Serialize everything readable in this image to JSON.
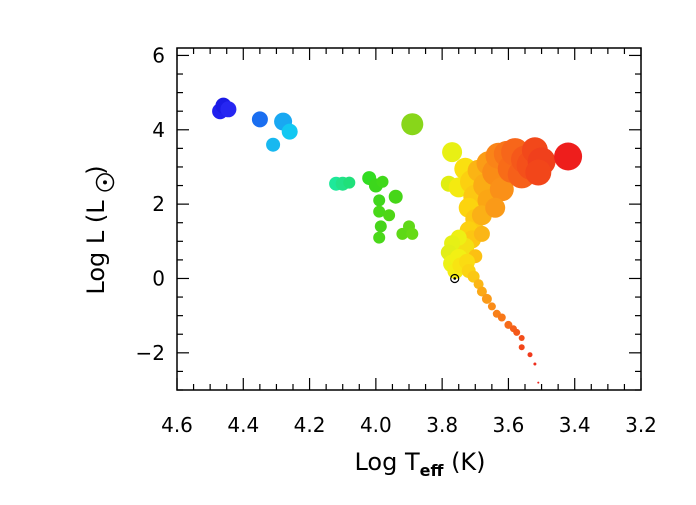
{
  "chart_data": {
    "type": "scatter",
    "title": "",
    "xlabel": {
      "main": "Log T",
      "sub": "eff",
      "tail": " (K)"
    },
    "ylabel": {
      "main": "Log L (L",
      "tail": ")"
    },
    "xlim": [
      4.6,
      3.2
    ],
    "ylim": [
      -3,
      6.2
    ],
    "x_ticks": [
      "4.6",
      "4.4",
      "4.2",
      "4.0",
      "3.8",
      "3.6",
      "3.4",
      "3.2"
    ],
    "x_tick_values": [
      4.6,
      4.4,
      4.2,
      4.0,
      3.8,
      3.6,
      3.4,
      3.2
    ],
    "y_ticks": [
      "6",
      "4",
      "2",
      "0",
      "−2"
    ],
    "y_tick_values": [
      6,
      4,
      2,
      0,
      -2
    ],
    "x_minor_step": 0.05,
    "y_minor_step": 0.5,
    "grid": false,
    "legend": "none",
    "sun_marker": {
      "x": 3.762,
      "y": 0.0,
      "symbol": "sun-icon"
    },
    "points": [
      {
        "x": 4.47,
        "y": 4.5,
        "size": 8,
        "color": "#2020ee"
      },
      {
        "x": 4.46,
        "y": 4.65,
        "size": 8,
        "color": "#1a1ae6"
      },
      {
        "x": 4.445,
        "y": 4.55,
        "size": 8,
        "color": "#2626f2"
      },
      {
        "x": 4.35,
        "y": 4.28,
        "size": 8,
        "color": "#1a6ef0"
      },
      {
        "x": 4.28,
        "y": 4.22,
        "size": 9,
        "color": "#19a8f2"
      },
      {
        "x": 4.26,
        "y": 3.95,
        "size": 8,
        "color": "#12c8f2"
      },
      {
        "x": 4.31,
        "y": 3.6,
        "size": 7,
        "color": "#18b8f0"
      },
      {
        "x": 4.12,
        "y": 2.55,
        "size": 7,
        "color": "#1ee89a"
      },
      {
        "x": 4.1,
        "y": 2.55,
        "size": 7,
        "color": "#22e288"
      },
      {
        "x": 4.08,
        "y": 2.58,
        "size": 6,
        "color": "#20e07a"
      },
      {
        "x": 4.02,
        "y": 2.7,
        "size": 7,
        "color": "#32dc22"
      },
      {
        "x": 4.0,
        "y": 2.5,
        "size": 7,
        "color": "#3cd61c"
      },
      {
        "x": 3.98,
        "y": 2.6,
        "size": 6,
        "color": "#40d81a"
      },
      {
        "x": 3.94,
        "y": 2.2,
        "size": 7,
        "color": "#46d618"
      },
      {
        "x": 3.99,
        "y": 2.1,
        "size": 6,
        "color": "#40d61c"
      },
      {
        "x": 3.99,
        "y": 1.8,
        "size": 6,
        "color": "#48d818"
      },
      {
        "x": 3.96,
        "y": 1.7,
        "size": 6,
        "color": "#4ed616"
      },
      {
        "x": 3.985,
        "y": 1.4,
        "size": 6,
        "color": "#46d41a"
      },
      {
        "x": 3.99,
        "y": 1.1,
        "size": 6,
        "color": "#4ad81a"
      },
      {
        "x": 3.92,
        "y": 1.2,
        "size": 6,
        "color": "#5ed816"
      },
      {
        "x": 3.9,
        "y": 1.4,
        "size": 6,
        "color": "#60d818"
      },
      {
        "x": 3.89,
        "y": 1.2,
        "size": 6,
        "color": "#66da16"
      },
      {
        "x": 3.89,
        "y": 4.15,
        "size": 11,
        "color": "#88d61a"
      },
      {
        "x": 3.77,
        "y": 3.4,
        "size": 10,
        "color": "#e8f014"
      },
      {
        "x": 3.78,
        "y": 2.55,
        "size": 8,
        "color": "#e0ee10"
      },
      {
        "x": 3.75,
        "y": 2.45,
        "size": 10,
        "color": "#f4ea10"
      },
      {
        "x": 3.73,
        "y": 2.95,
        "size": 11,
        "color": "#fae010"
      },
      {
        "x": 3.71,
        "y": 2.6,
        "size": 12,
        "color": "#fcd010"
      },
      {
        "x": 3.7,
        "y": 2.2,
        "size": 12,
        "color": "#fcc812"
      },
      {
        "x": 3.72,
        "y": 1.9,
        "size": 10,
        "color": "#fcd40e"
      },
      {
        "x": 3.7,
        "y": 1.6,
        "size": 10,
        "color": "#fcc810"
      },
      {
        "x": 3.72,
        "y": 1.3,
        "size": 9,
        "color": "#fcd010"
      },
      {
        "x": 3.71,
        "y": 1.05,
        "size": 9,
        "color": "#fcc612"
      },
      {
        "x": 3.73,
        "y": 0.85,
        "size": 9,
        "color": "#f4e014"
      },
      {
        "x": 3.69,
        "y": 2.9,
        "size": 11,
        "color": "#fbb414"
      },
      {
        "x": 3.67,
        "y": 2.5,
        "size": 12,
        "color": "#fbac14"
      },
      {
        "x": 3.66,
        "y": 2.1,
        "size": 11,
        "color": "#fba614"
      },
      {
        "x": 3.68,
        "y": 1.7,
        "size": 10,
        "color": "#fbb016"
      },
      {
        "x": 3.68,
        "y": 1.2,
        "size": 8,
        "color": "#fbb616"
      },
      {
        "x": 3.7,
        "y": 0.6,
        "size": 7,
        "color": "#fcc012"
      },
      {
        "x": 3.66,
        "y": 3.1,
        "size": 12,
        "color": "#fb9c16"
      },
      {
        "x": 3.64,
        "y": 2.85,
        "size": 13,
        "color": "#fa8c16"
      },
      {
        "x": 3.63,
        "y": 3.3,
        "size": 13,
        "color": "#fa8418"
      },
      {
        "x": 3.62,
        "y": 2.4,
        "size": 12,
        "color": "#fa9018"
      },
      {
        "x": 3.64,
        "y": 1.9,
        "size": 10,
        "color": "#fa9a18"
      },
      {
        "x": 3.605,
        "y": 3.35,
        "size": 13,
        "color": "#f87418"
      },
      {
        "x": 3.59,
        "y": 2.95,
        "size": 14,
        "color": "#f86c18"
      },
      {
        "x": 3.58,
        "y": 3.4,
        "size": 14,
        "color": "#f7661a"
      },
      {
        "x": 3.56,
        "y": 2.8,
        "size": 14,
        "color": "#f6601a"
      },
      {
        "x": 3.55,
        "y": 3.2,
        "size": 14,
        "color": "#f5581a"
      },
      {
        "x": 3.53,
        "y": 3.05,
        "size": 15,
        "color": "#f4501a"
      },
      {
        "x": 3.52,
        "y": 3.45,
        "size": 13,
        "color": "#f2481a"
      },
      {
        "x": 3.5,
        "y": 3.15,
        "size": 14,
        "color": "#f0401c"
      },
      {
        "x": 3.51,
        "y": 2.85,
        "size": 13,
        "color": "#f2461a"
      },
      {
        "x": 3.42,
        "y": 3.28,
        "size": 14,
        "color": "#ee1e1c"
      },
      {
        "x": 3.75,
        "y": 1.1,
        "size": 8,
        "color": "#eef014"
      },
      {
        "x": 3.77,
        "y": 0.95,
        "size": 8,
        "color": "#e6f016"
      },
      {
        "x": 3.78,
        "y": 0.7,
        "size": 8,
        "color": "#e2ee18"
      },
      {
        "x": 3.77,
        "y": 0.4,
        "size": 9,
        "color": "#ecf216"
      },
      {
        "x": 3.75,
        "y": 0.55,
        "size": 9,
        "color": "#f2f014"
      },
      {
        "x": 3.76,
        "y": 0.2,
        "size": 8,
        "color": "#f4ee14"
      },
      {
        "x": 3.745,
        "y": 0.35,
        "size": 8,
        "color": "#f8e412"
      },
      {
        "x": 3.725,
        "y": 0.45,
        "size": 8,
        "color": "#fadc12"
      },
      {
        "x": 3.72,
        "y": 0.2,
        "size": 7,
        "color": "#fbd412"
      },
      {
        "x": 3.705,
        "y": 0.05,
        "size": 6,
        "color": "#fbc814"
      },
      {
        "x": 3.69,
        "y": -0.15,
        "size": 5,
        "color": "#fbb616"
      },
      {
        "x": 3.68,
        "y": -0.35,
        "size": 5,
        "color": "#fba816"
      },
      {
        "x": 3.665,
        "y": -0.55,
        "size": 5,
        "color": "#fa9a18"
      },
      {
        "x": 3.65,
        "y": -0.75,
        "size": 4,
        "color": "#fa8c18"
      },
      {
        "x": 3.635,
        "y": -0.95,
        "size": 4,
        "color": "#f88018"
      },
      {
        "x": 3.62,
        "y": -1.05,
        "size": 4,
        "color": "#f87818"
      },
      {
        "x": 3.6,
        "y": -1.25,
        "size": 4,
        "color": "#f66c1a"
      },
      {
        "x": 3.585,
        "y": -1.35,
        "size": 3.5,
        "color": "#f5601a"
      },
      {
        "x": 3.575,
        "y": -1.45,
        "size": 3.5,
        "color": "#f4581a"
      },
      {
        "x": 3.56,
        "y": -1.6,
        "size": 3,
        "color": "#f34e1a"
      },
      {
        "x": 3.56,
        "y": -1.85,
        "size": 3,
        "color": "#f2461a"
      },
      {
        "x": 3.535,
        "y": -2.05,
        "size": 2.5,
        "color": "#f03a1c"
      },
      {
        "x": 3.52,
        "y": -2.3,
        "size": 1.5,
        "color": "#ee2e1c"
      },
      {
        "x": 3.51,
        "y": -2.8,
        "size": 1,
        "color": "#ec241c"
      }
    ]
  }
}
